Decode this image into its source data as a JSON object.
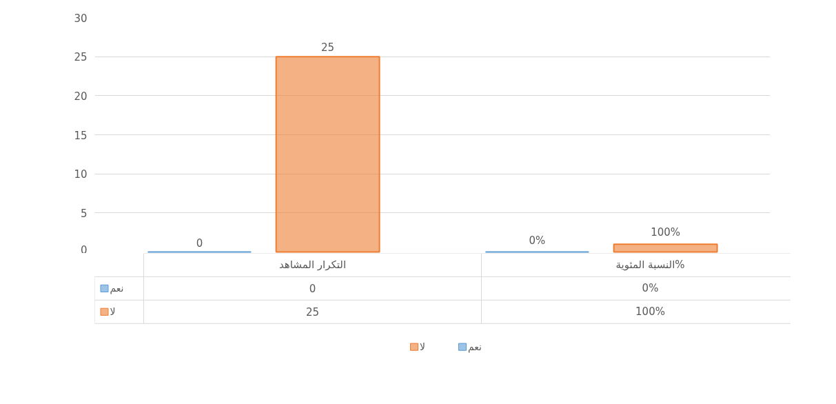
{
  "chart_data": {
    "type": "bar",
    "categories": [
      "التكرار المشاهد",
      "النسبة المئوية%"
    ],
    "series": [
      {
        "name": "نعم",
        "color": "#5b9bd5",
        "values": [
          0,
          0
        ],
        "value_labels": [
          "0",
          "0%"
        ]
      },
      {
        "name": "لا",
        "color": "#ed7d31",
        "values": [
          25,
          1
        ],
        "value_labels": [
          "25",
          "100%"
        ]
      }
    ],
    "ylim": [
      0,
      30
    ],
    "yticks": [
      0,
      5,
      10,
      15,
      20,
      25,
      30
    ],
    "grid": "y",
    "legend": "bottom"
  }
}
